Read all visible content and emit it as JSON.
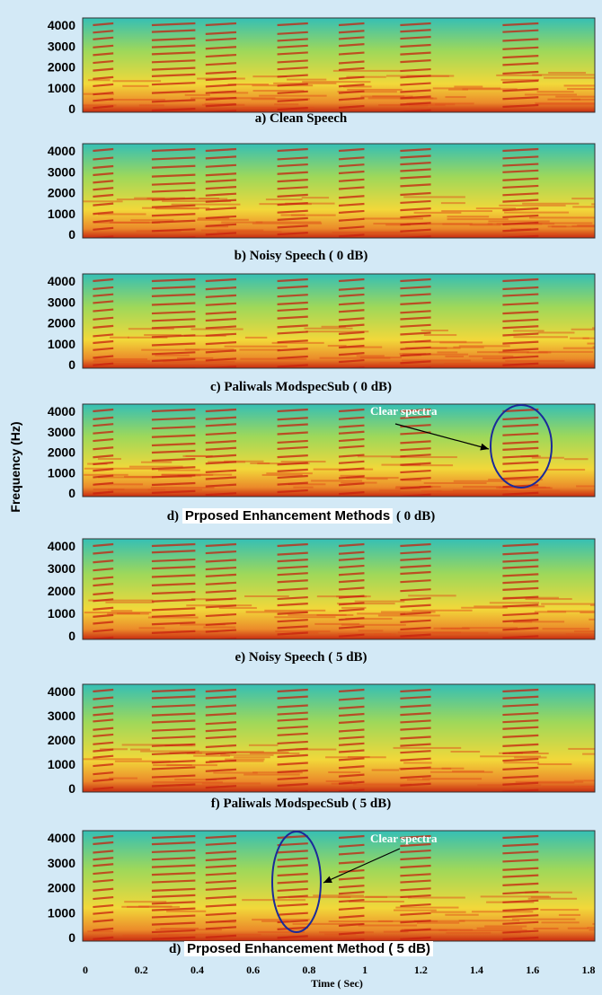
{
  "figure": {
    "y_axis_label": "Frequency (Hz)",
    "y_ticks": [
      4000,
      3000,
      2000,
      1000,
      0
    ],
    "x_ticks": [
      0,
      0.2,
      0.4,
      0.6,
      0.8,
      1,
      1.2,
      1.4,
      1.6,
      1.8
    ],
    "x_axis_label": "Time ( Sec)",
    "panels": [
      {
        "caption": "a) Clean  Speech"
      },
      {
        "caption": "b) Noisy Speech ( 0 dB)"
      },
      {
        "caption": "c) Paliwals ModspecSub ( 0 dB)"
      },
      {
        "caption_label": "d)",
        "caption_text": "Prposed Enhancement Methods",
        "caption_suffix": "( 0 dB)",
        "annotation": "Clear spectra"
      },
      {
        "caption": "e) Noisy Speech ( 5 dB)"
      },
      {
        "caption": "f) Paliwals ModspecSub ( 5 dB)"
      },
      {
        "caption_label": "d)",
        "caption_text": "Prposed Enhancement Method ( 5 dB)",
        "annotation": "Clear spectra"
      }
    ]
  }
}
